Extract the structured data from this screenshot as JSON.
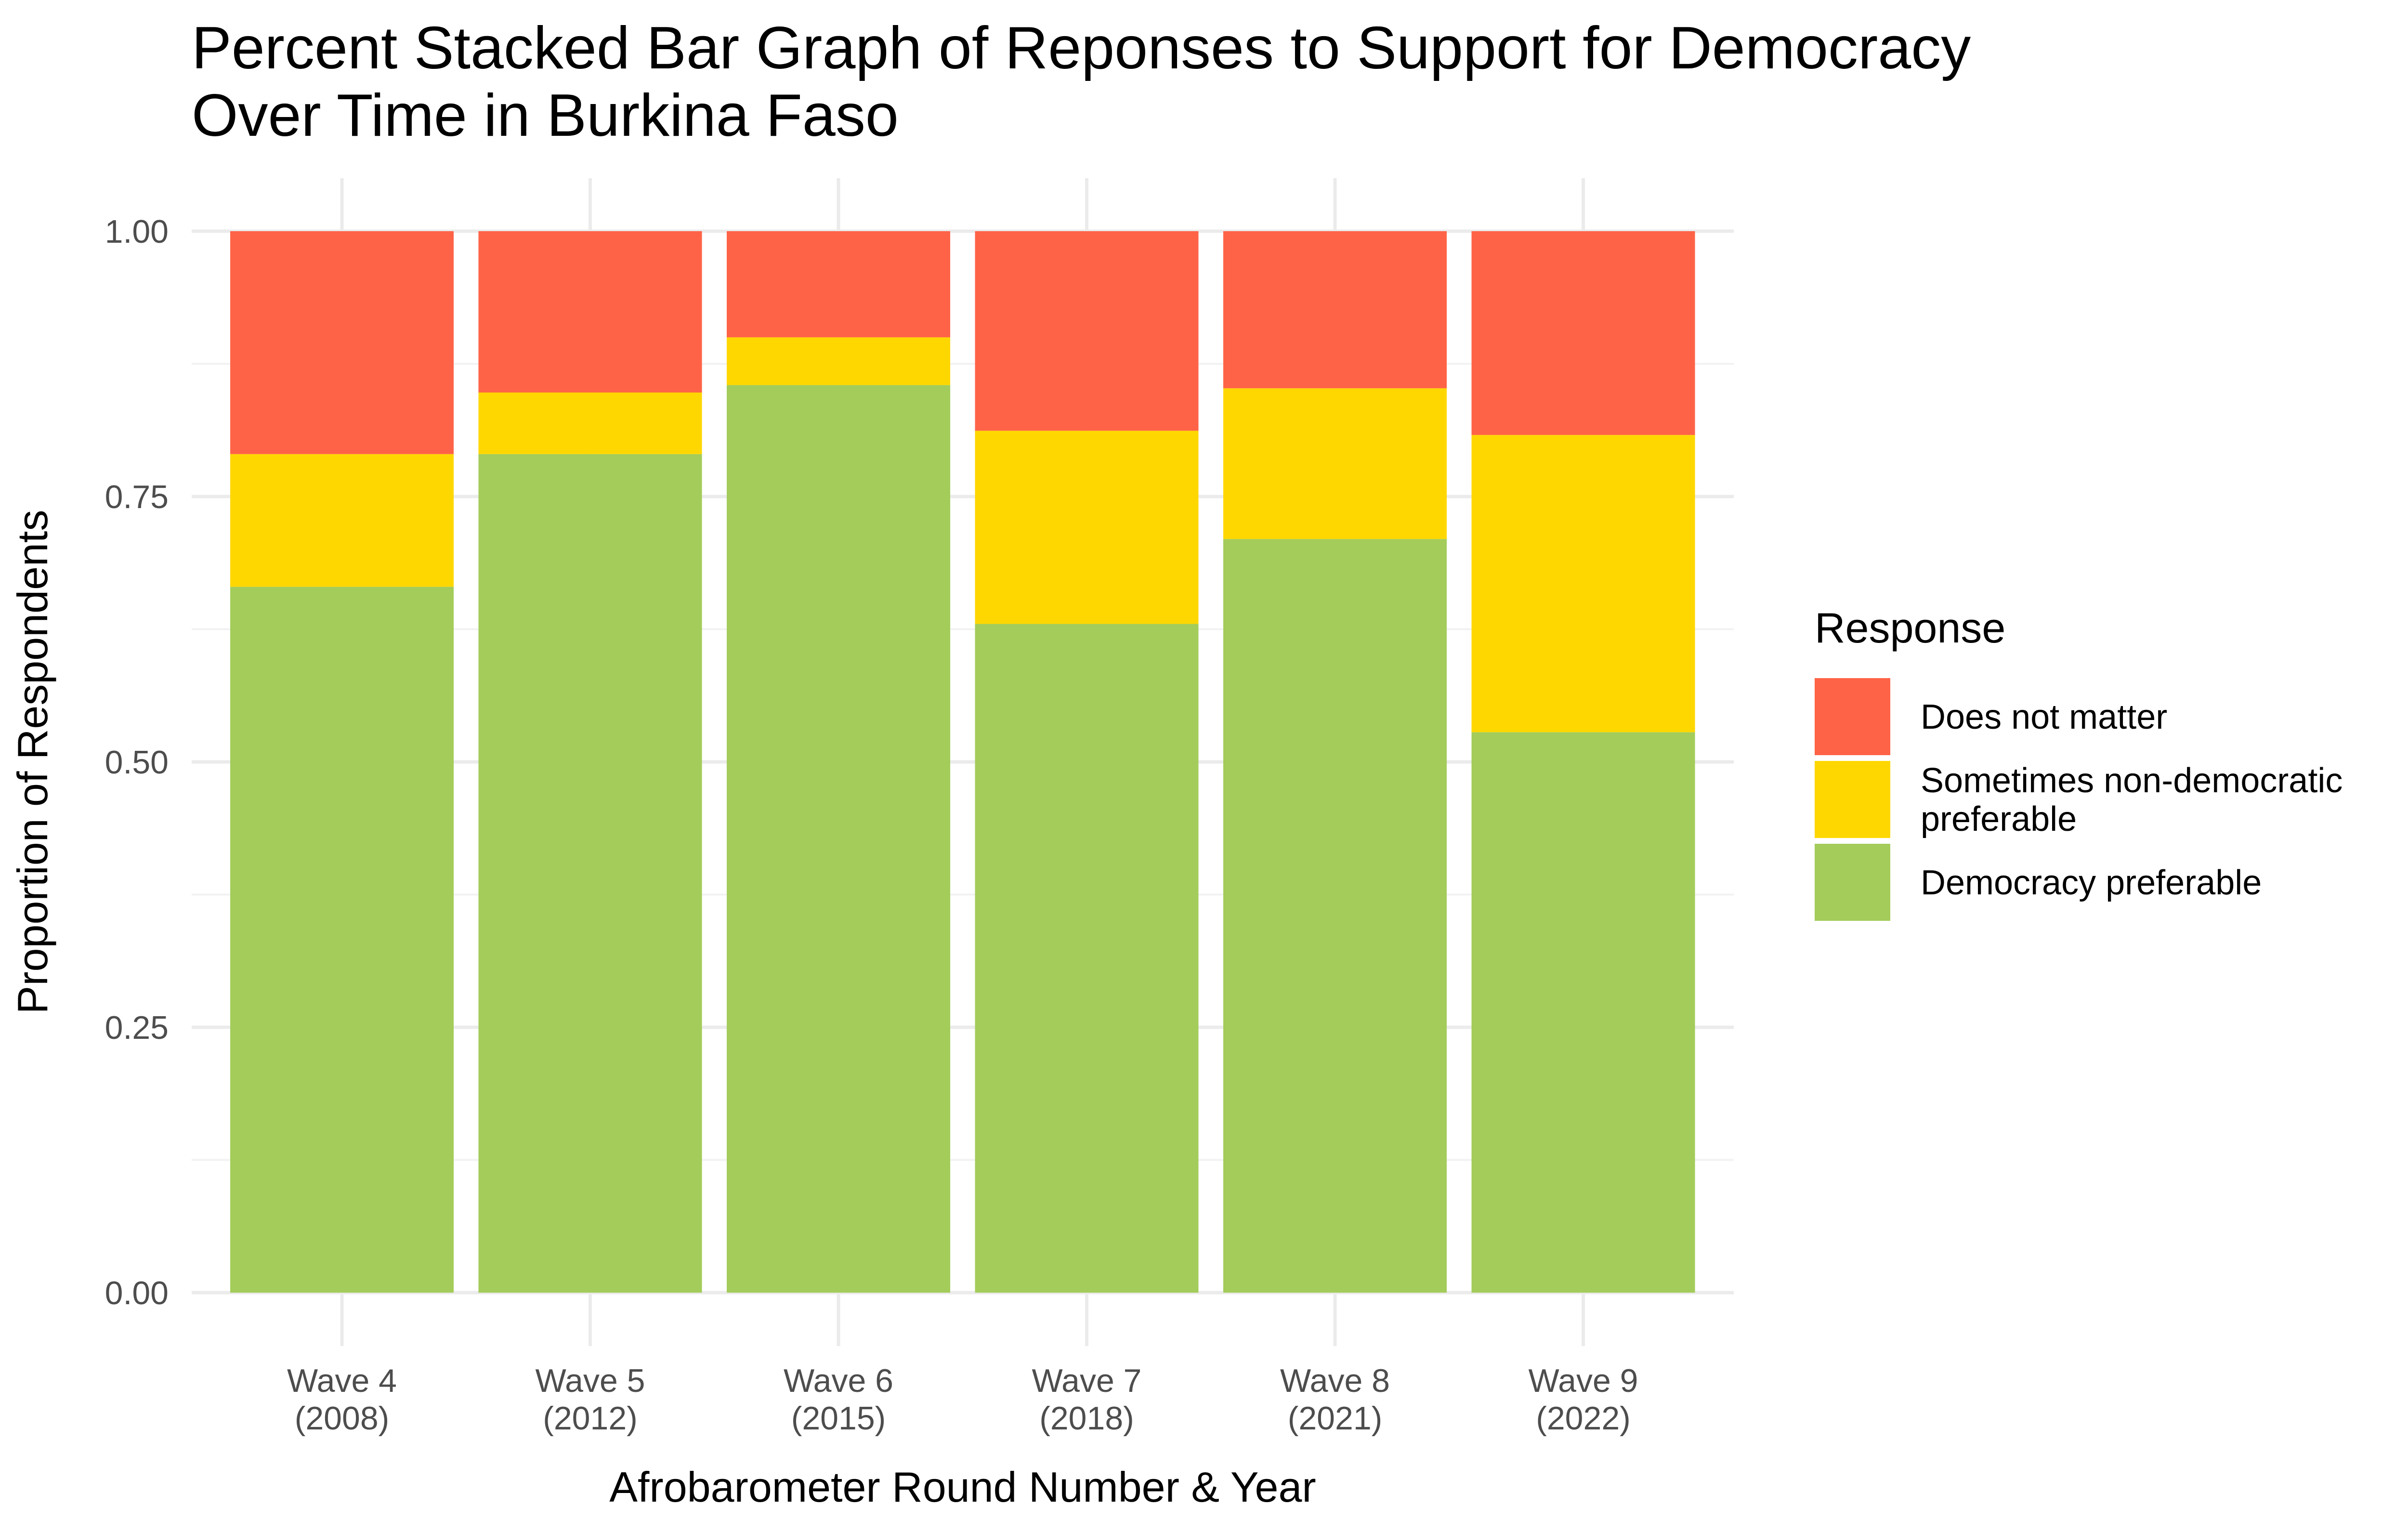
{
  "chart_data": {
    "type": "bar",
    "stacked": "percent",
    "title_lines": [
      "Percent Stacked Bar Graph of Reponses to Support for Democracy",
      "Over Time in Burkina Faso"
    ],
    "xlabel": "Afrobarometer Round Number & Year",
    "ylabel": "Proportion of Respondents",
    "ylim": [
      0,
      1
    ],
    "y_ticks": [
      "0.00",
      "0.25",
      "0.50",
      "0.75",
      "1.00"
    ],
    "grid": true,
    "categories": [
      [
        "Wave 4",
        "(2008)"
      ],
      [
        "Wave 5",
        "(2012)"
      ],
      [
        "Wave 6",
        "(2015)"
      ],
      [
        "Wave 7",
        "(2018)"
      ],
      [
        "Wave 8",
        "(2021)"
      ],
      [
        "Wave 9",
        "(2022)"
      ]
    ],
    "series": [
      {
        "name": "Democracy preferable",
        "color": "#a3cc5a",
        "values": [
          0.665,
          0.79,
          0.855,
          0.63,
          0.71,
          0.528
        ]
      },
      {
        "name": "Sometimes non-democratic preferable",
        "color": "#ffd700",
        "values": [
          0.125,
          0.058,
          0.045,
          0.182,
          0.142,
          0.28
        ]
      },
      {
        "name": "Does not matter",
        "color": "#ff6347",
        "values": [
          0.21,
          0.152,
          0.1,
          0.188,
          0.148,
          0.192
        ]
      }
    ],
    "legend": {
      "title": "Response",
      "position": "right",
      "items": [
        {
          "lines": [
            "Does not matter"
          ],
          "color": "#ff6347"
        },
        {
          "lines": [
            "Sometimes non-democratic",
            "preferable"
          ],
          "color": "#ffd700"
        },
        {
          "lines": [
            "Democracy preferable"
          ],
          "color": "#a3cc5a"
        }
      ]
    }
  }
}
